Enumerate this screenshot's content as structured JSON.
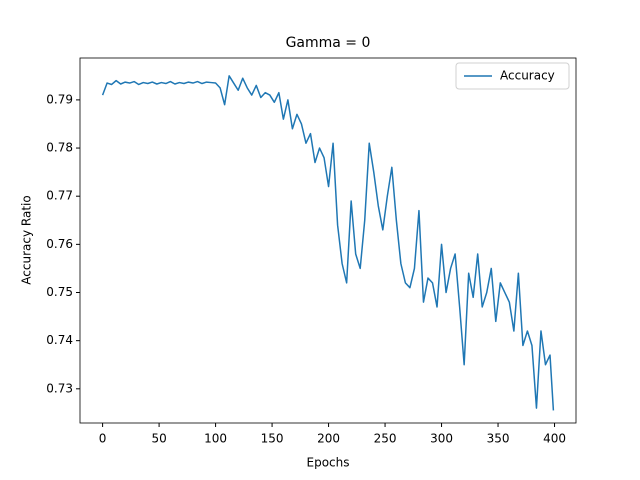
{
  "chart_data": {
    "type": "line",
    "title": "Gamma = 0",
    "x_label": "Epochs",
    "y_label": "Accuracy Ratio",
    "x": [
      0,
      4,
      8,
      12,
      16,
      20,
      24,
      28,
      32,
      36,
      40,
      44,
      48,
      52,
      56,
      60,
      64,
      68,
      72,
      76,
      80,
      84,
      88,
      92,
      96,
      100,
      104,
      108,
      112,
      116,
      120,
      124,
      128,
      132,
      136,
      140,
      144,
      148,
      152,
      156,
      160,
      164,
      168,
      172,
      176,
      180,
      184,
      188,
      192,
      196,
      200,
      204,
      208,
      212,
      216,
      220,
      224,
      228,
      232,
      236,
      240,
      244,
      248,
      252,
      256,
      260,
      264,
      268,
      272,
      276,
      280,
      284,
      288,
      292,
      296,
      300,
      304,
      308,
      312,
      316,
      320,
      324,
      328,
      332,
      336,
      340,
      344,
      348,
      352,
      356,
      360,
      364,
      368,
      372,
      376,
      380,
      384,
      388,
      392,
      396,
      399
    ],
    "series": [
      {
        "name": "Accuracy",
        "color": "#1f77b4",
        "values": [
          0.791,
          0.7935,
          0.7932,
          0.794,
          0.7933,
          0.7937,
          0.7935,
          0.7938,
          0.7932,
          0.7936,
          0.7934,
          0.7937,
          0.7933,
          0.7936,
          0.7934,
          0.7938,
          0.7933,
          0.7936,
          0.7934,
          0.7937,
          0.7935,
          0.7938,
          0.7934,
          0.7937,
          0.7936,
          0.7935,
          0.7925,
          0.789,
          0.795,
          0.7935,
          0.792,
          0.7945,
          0.7925,
          0.791,
          0.793,
          0.7905,
          0.7915,
          0.791,
          0.7895,
          0.7915,
          0.786,
          0.79,
          0.784,
          0.787,
          0.785,
          0.781,
          0.783,
          0.777,
          0.78,
          0.778,
          0.772,
          0.781,
          0.764,
          0.756,
          0.752,
          0.769,
          0.758,
          0.755,
          0.765,
          0.781,
          0.775,
          0.768,
          0.763,
          0.77,
          0.776,
          0.765,
          0.756,
          0.752,
          0.751,
          0.755,
          0.767,
          0.748,
          0.753,
          0.752,
          0.747,
          0.76,
          0.75,
          0.755,
          0.758,
          0.747,
          0.735,
          0.754,
          0.749,
          0.758,
          0.747,
          0.75,
          0.755,
          0.744,
          0.752,
          0.75,
          0.748,
          0.742,
          0.754,
          0.739,
          0.742,
          0.739,
          0.726,
          0.742,
          0.735,
          0.737,
          0.7255
        ]
      }
    ],
    "xlim": [
      -20,
      419
    ],
    "ylim": [
      0.7229,
      0.7987
    ],
    "xticks": [
      0,
      50,
      100,
      150,
      200,
      250,
      300,
      350,
      400
    ],
    "yticks": [
      0.73,
      0.74,
      0.75,
      0.76,
      0.77,
      0.78,
      0.79
    ],
    "legend": "upper right"
  }
}
